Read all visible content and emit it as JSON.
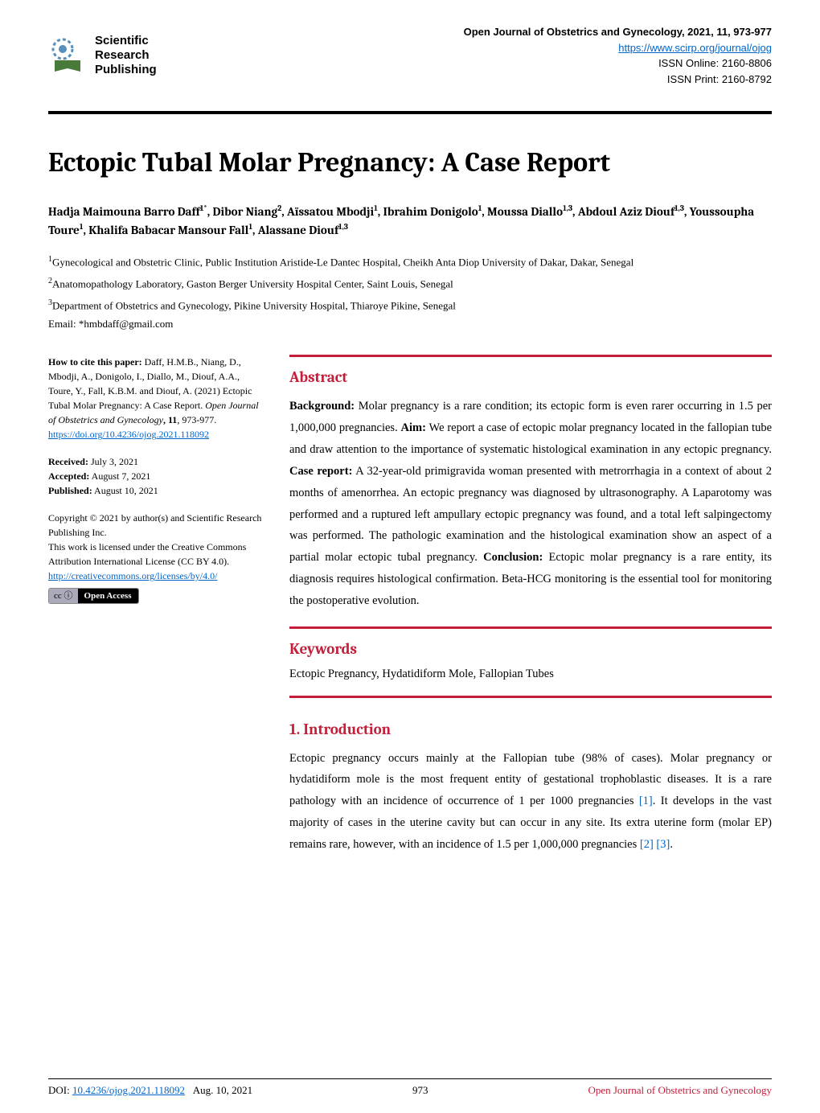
{
  "colors": {
    "accent_red": "#c41e3a",
    "link_blue": "#0066cc",
    "black": "#000000",
    "white": "#ffffff",
    "logo_gear": "#5a8fb8",
    "logo_book": "#4a7a3a"
  },
  "typography": {
    "title_font": "Cambria, Georgia, serif",
    "body_font": "Times New Roman, serif",
    "sans_font": "Arial, sans-serif",
    "title_size_pt": 26,
    "heading_size_pt": 14,
    "body_size_pt": 11,
    "left_col_size_pt": 9
  },
  "header": {
    "publisher_line1": "Scientific",
    "publisher_line2": "Research",
    "publisher_line3": "Publishing",
    "journal_title": "Open Journal of Obstetrics and Gynecology, 2021, 11, 973-977",
    "journal_url": "https://www.scirp.org/journal/ojog",
    "issn_online": "ISSN Online: 2160-8806",
    "issn_print": "ISSN Print: 2160-8792"
  },
  "article": {
    "title": "Ectopic Tubal Molar Pregnancy: A Case Report",
    "authors_html": "Hadja Maimouna Barro Daff<sup>1*</sup>, Dibor Niang<sup>2</sup>, Aïssatou Mbodji<sup>1</sup>, Ibrahim Donigolo<sup>1</sup>, Moussa Diallo<sup>1,3</sup>, Abdoul Aziz Diouf<sup>1,3</sup>, Youssoupha Toure<sup>1</sup>, Khalifa Babacar Mansour Fall<sup>1</sup>, Alassane Diouf<sup>1,3</sup>",
    "affiliations": [
      "<sup>1</sup>Gynecological and Obstetric Clinic, Public Institution Aristide-Le Dantec Hospital, Cheikh Anta Diop University of Dakar, Dakar, Senegal",
      "<sup>2</sup>Anatomopathology Laboratory, Gaston Berger University Hospital Center, Saint Louis, Senegal",
      "<sup>3</sup>Department of Obstetrics and Gynecology, Pikine University Hospital, Thiaroye Pikine, Senegal"
    ],
    "email": "Email: *hmbdaff@gmail.com"
  },
  "left_column": {
    "cite_label": "How to cite this paper:",
    "cite_text": " Daff, H.M.B., Niang, D., Mbodji, A., Donigolo, I., Diallo, M., Diouf, A.A., Toure, Y., Fall, K.B.M. and Diouf, A. (2021) Ectopic Tubal Molar Pregnancy: A Case Report. ",
    "cite_journal_italic": "Open Journal of Obstetrics and Gynecology",
    "cite_vol": ", 11",
    "cite_pages": ", 973-977.",
    "doi_link": "https://doi.org/10.4236/ojog.2021.118092",
    "received_label": "Received:",
    "received_value": " July 3, 2021",
    "accepted_label": "Accepted:",
    "accepted_value": " August 7, 2021",
    "published_label": "Published:",
    "published_value": " August 10, 2021",
    "copyright_text": "Copyright © 2021 by author(s) and Scientific Research Publishing Inc.",
    "license_text": "This work is licensed under the Creative Commons Attribution International License (CC BY 4.0).",
    "license_link": "http://creativecommons.org/licenses/by/4.0/",
    "cc_icons": "cc ⓘ",
    "cc_label": "Open Access"
  },
  "sections": {
    "abstract_heading": "Abstract",
    "abstract_parts": {
      "background_label": "Background:",
      "background_text": " Molar pregnancy is a rare condition; its ectopic form is even rarer occurring in 1.5 per 1,000,000 pregnancies. ",
      "aim_label": "Aim:",
      "aim_text": " We report a case of ectopic molar pregnancy located in the fallopian tube and draw attention to the importance of systematic histological examination in any ectopic pregnancy. ",
      "case_label": "Case report:",
      "case_text": " A 32-year-old primigravida woman presented with metrorrhagia in a context of about 2 months of amenorrhea. An ectopic pregnancy was diagnosed by ultrasonography. A Laparotomy was performed and a ruptured left ampullary ectopic pregnancy was found, and a total left salpingectomy was performed. The pathologic examination and the histological examination show an aspect of a partial molar ectopic tubal pregnancy. ",
      "conclusion_label": "Conclusion:",
      "conclusion_text": " Ectopic molar pregnancy is a rare entity, its diagnosis requires histological confirmation. Beta-HCG monitoring is the essential tool for monitoring the postoperative evolution."
    },
    "keywords_heading": "Keywords",
    "keywords_text": "Ectopic Pregnancy, Hydatidiform Mole, Fallopian Tubes",
    "intro_heading": "1. Introduction",
    "intro_text_1": "Ectopic pregnancy occurs mainly at the Fallopian tube (98% of cases). Molar pregnancy or hydatidiform mole is the most frequent entity of gestational trophoblastic diseases. It is a rare pathology with an incidence of occurrence of 1 per 1000 pregnancies ",
    "intro_ref1": "[1]",
    "intro_text_2": ". It develops in the vast majority of cases in the uterine cavity but can occur in any site. Its extra uterine form (molar EP) remains rare, however, with an incidence of 1.5 per 1,000,000 pregnancies ",
    "intro_ref2": "[2]",
    "intro_ref3": "[3]",
    "intro_text_3": "."
  },
  "footer": {
    "doi_label": "DOI: ",
    "doi_link": "10.4236/ojog.2021.118092",
    "date": "Aug. 10, 2021",
    "page_num": "973",
    "journal_name": "Open Journal of Obstetrics and Gynecology"
  }
}
